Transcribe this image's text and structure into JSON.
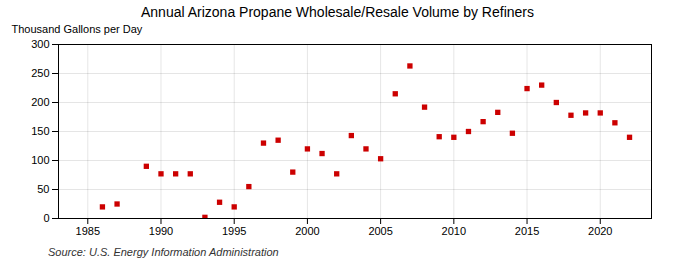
{
  "chart_data": {
    "type": "scatter",
    "title": "Annual Arizona Propane Wholesale/Resale Volume by Refiners",
    "ylabel": "Thousand Gallons per Day",
    "source": "Source: U.S. Energy Information Administration",
    "x": [
      1986,
      1987,
      1989,
      1990,
      1991,
      1992,
      1993,
      1994,
      1995,
      1996,
      1997,
      1998,
      1999,
      2000,
      2001,
      2002,
      2003,
      2004,
      2005,
      2006,
      2007,
      2008,
      2009,
      2010,
      2011,
      2012,
      2013,
      2014,
      2015,
      2016,
      2017,
      2018,
      2019,
      2020,
      2021,
      2022
    ],
    "values": [
      20,
      25,
      90,
      77,
      77,
      77,
      2,
      28,
      20,
      55,
      130,
      135,
      80,
      120,
      112,
      77,
      143,
      120,
      103,
      215,
      263,
      192,
      141,
      140,
      150,
      167,
      183,
      147,
      224,
      230,
      200,
      178,
      182,
      182,
      165,
      140
    ],
    "color": "#cc0000",
    "marker": "square",
    "xlim": [
      1983,
      2023.5
    ],
    "xticks": [
      1985,
      1990,
      1995,
      2000,
      2005,
      2010,
      2015,
      2020
    ],
    "ylim": [
      0,
      300
    ],
    "yticks": [
      0,
      50,
      100,
      150,
      200,
      250,
      300
    ],
    "grid": true
  }
}
